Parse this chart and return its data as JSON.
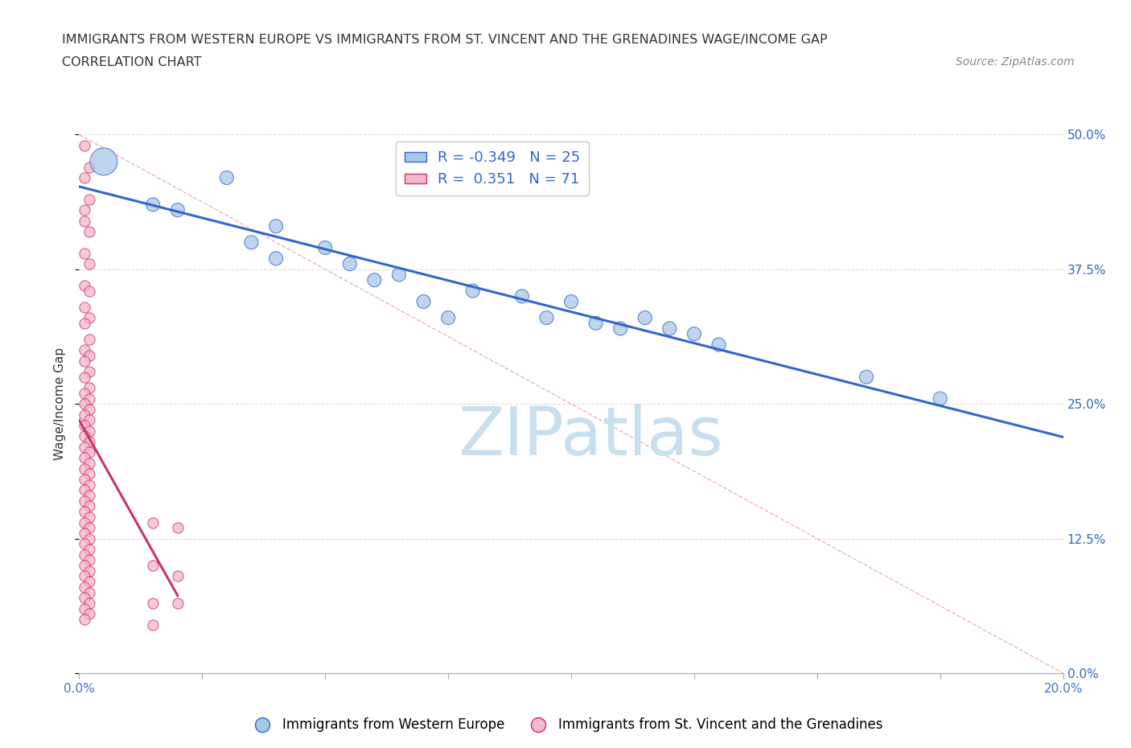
{
  "title_line1": "IMMIGRANTS FROM WESTERN EUROPE VS IMMIGRANTS FROM ST. VINCENT AND THE GRENADINES WAGE/INCOME GAP",
  "title_line2": "CORRELATION CHART",
  "source": "Source: ZipAtlas.com",
  "ylabel": "Wage/Income Gap",
  "xlim": [
    0.0,
    0.2
  ],
  "ylim": [
    0.0,
    0.5
  ],
  "yticks": [
    0.0,
    0.125,
    0.25,
    0.375,
    0.5
  ],
  "xticks": [
    0.0,
    0.025,
    0.05,
    0.075,
    0.1,
    0.125,
    0.15,
    0.175,
    0.2
  ],
  "blue_color": "#a8c8e8",
  "pink_color": "#f4b8cc",
  "blue_line_color": "#3366cc",
  "pink_line_color": "#cc3366",
  "R_blue": -0.349,
  "N_blue": 25,
  "R_pink": 0.351,
  "N_pink": 71,
  "blue_scatter": [
    [
      0.005,
      0.475
    ],
    [
      0.015,
      0.435
    ],
    [
      0.02,
      0.43
    ],
    [
      0.03,
      0.46
    ],
    [
      0.035,
      0.4
    ],
    [
      0.04,
      0.415
    ],
    [
      0.04,
      0.385
    ],
    [
      0.05,
      0.395
    ],
    [
      0.055,
      0.38
    ],
    [
      0.06,
      0.365
    ],
    [
      0.065,
      0.37
    ],
    [
      0.07,
      0.345
    ],
    [
      0.075,
      0.33
    ],
    [
      0.08,
      0.355
    ],
    [
      0.09,
      0.35
    ],
    [
      0.095,
      0.33
    ],
    [
      0.1,
      0.345
    ],
    [
      0.105,
      0.325
    ],
    [
      0.11,
      0.32
    ],
    [
      0.115,
      0.33
    ],
    [
      0.12,
      0.32
    ],
    [
      0.125,
      0.315
    ],
    [
      0.13,
      0.305
    ],
    [
      0.16,
      0.275
    ],
    [
      0.175,
      0.255
    ]
  ],
  "blue_scatter_sizes": [
    600,
    150,
    150,
    150,
    150,
    150,
    150,
    150,
    150,
    150,
    150,
    150,
    150,
    150,
    150,
    150,
    150,
    150,
    150,
    150,
    150,
    150,
    150,
    150,
    150
  ],
  "pink_scatter": [
    [
      0.001,
      0.49
    ],
    [
      0.001,
      0.46
    ],
    [
      0.002,
      0.47
    ],
    [
      0.001,
      0.43
    ],
    [
      0.002,
      0.44
    ],
    [
      0.001,
      0.42
    ],
    [
      0.002,
      0.41
    ],
    [
      0.001,
      0.39
    ],
    [
      0.002,
      0.38
    ],
    [
      0.001,
      0.36
    ],
    [
      0.002,
      0.355
    ],
    [
      0.001,
      0.34
    ],
    [
      0.002,
      0.33
    ],
    [
      0.001,
      0.325
    ],
    [
      0.002,
      0.31
    ],
    [
      0.001,
      0.3
    ],
    [
      0.002,
      0.295
    ],
    [
      0.001,
      0.29
    ],
    [
      0.002,
      0.28
    ],
    [
      0.001,
      0.275
    ],
    [
      0.002,
      0.265
    ],
    [
      0.001,
      0.26
    ],
    [
      0.002,
      0.255
    ],
    [
      0.001,
      0.25
    ],
    [
      0.002,
      0.245
    ],
    [
      0.001,
      0.24
    ],
    [
      0.002,
      0.235
    ],
    [
      0.001,
      0.23
    ],
    [
      0.002,
      0.225
    ],
    [
      0.001,
      0.22
    ],
    [
      0.002,
      0.215
    ],
    [
      0.001,
      0.21
    ],
    [
      0.002,
      0.205
    ],
    [
      0.001,
      0.2
    ],
    [
      0.002,
      0.195
    ],
    [
      0.001,
      0.19
    ],
    [
      0.002,
      0.185
    ],
    [
      0.001,
      0.18
    ],
    [
      0.002,
      0.175
    ],
    [
      0.001,
      0.17
    ],
    [
      0.002,
      0.165
    ],
    [
      0.001,
      0.16
    ],
    [
      0.002,
      0.155
    ],
    [
      0.001,
      0.15
    ],
    [
      0.002,
      0.145
    ],
    [
      0.001,
      0.14
    ],
    [
      0.002,
      0.135
    ],
    [
      0.001,
      0.13
    ],
    [
      0.002,
      0.125
    ],
    [
      0.001,
      0.12
    ],
    [
      0.002,
      0.115
    ],
    [
      0.001,
      0.11
    ],
    [
      0.002,
      0.105
    ],
    [
      0.001,
      0.1
    ],
    [
      0.002,
      0.095
    ],
    [
      0.001,
      0.09
    ],
    [
      0.002,
      0.085
    ],
    [
      0.001,
      0.08
    ],
    [
      0.002,
      0.075
    ],
    [
      0.001,
      0.07
    ],
    [
      0.002,
      0.065
    ],
    [
      0.001,
      0.06
    ],
    [
      0.002,
      0.055
    ],
    [
      0.001,
      0.05
    ],
    [
      0.015,
      0.14
    ],
    [
      0.015,
      0.1
    ],
    [
      0.02,
      0.135
    ],
    [
      0.02,
      0.09
    ],
    [
      0.02,
      0.065
    ],
    [
      0.015,
      0.065
    ],
    [
      0.015,
      0.045
    ]
  ],
  "pink_scatter_sizes": 90,
  "watermark_text": "ZIPatlas",
  "watermark_color": "#c8dff0",
  "background_color": "#ffffff",
  "grid_color": "#dddddd",
  "right_ytick_color": "#3366cc",
  "diagonal_line_color": "#f0b0c0"
}
